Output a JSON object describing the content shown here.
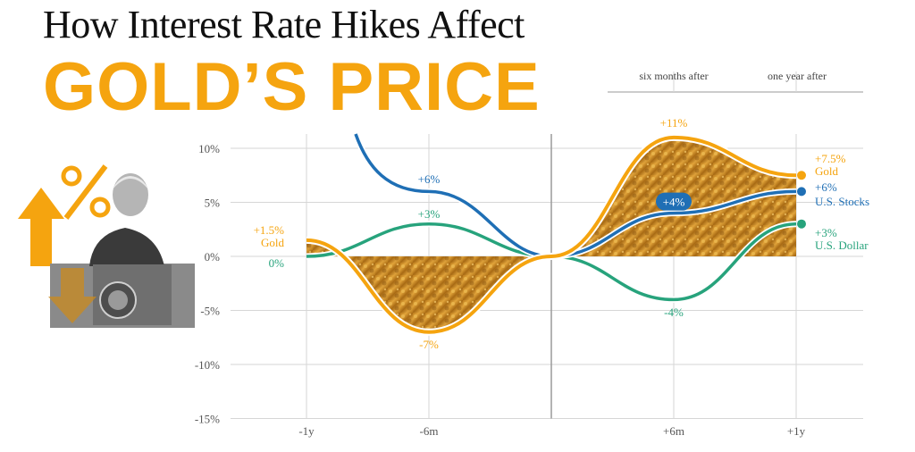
{
  "title": "How Interest Rate Hikes Affect",
  "headline": "GOLD’S PRICE",
  "colors": {
    "gold": "#f5a40f",
    "stocks": "#1f6fb5",
    "dollar": "#27a37c",
    "grid": "#d6d6d6",
    "axis": "#9a9a9a"
  },
  "icons": [
    "percent-up-arrow-icon",
    "down-arrow-icon",
    "speaker-photo"
  ],
  "chart_data": {
    "type": "line",
    "title": "",
    "ylim": [
      -15,
      11
    ],
    "y_ticks": [
      "10%",
      "5%",
      "0%",
      "-5%",
      "-10%",
      "-15%"
    ],
    "y_tick_values": [
      10,
      5,
      0,
      -5,
      -10,
      -15
    ],
    "x_ticks": [
      "-1y",
      "-6m",
      "+6m",
      "+1y"
    ],
    "x_tick_values": [
      -12,
      -6,
      6,
      12
    ],
    "period_labels": [
      "six months after",
      "one year after"
    ],
    "series": [
      {
        "name": "Gold",
        "x": [
          -12,
          -6,
          0,
          6,
          12
        ],
        "y": [
          1.5,
          -7,
          0,
          11,
          7.5
        ]
      },
      {
        "name": "U.S. Stocks",
        "x": [
          -12,
          -6,
          0,
          6,
          12
        ],
        "y": [
          13,
          6,
          0,
          4,
          6
        ]
      },
      {
        "name": "U.S. Dollar",
        "x": [
          -12,
          -6,
          0,
          6,
          12
        ],
        "y": [
          0,
          3,
          0,
          -4,
          3
        ]
      }
    ],
    "annotations": {
      "gold_start": "+1.5%",
      "gold_start_name": "Gold",
      "dollar_start": "0%",
      "stocks_6m_before": "+6%",
      "dollar_6m_before": "+3%",
      "gold_6m_before": "-7%",
      "gold_6m_after": "+11%",
      "stocks_6m_after": "+4%",
      "dollar_6m_after": "-4%",
      "gold_end": "+7.5%",
      "gold_end_name": "Gold",
      "stocks_end": "+6%",
      "stocks_end_name": "U.S. Stocks",
      "dollar_end": "+3%",
      "dollar_end_name": "U.S. Dollar"
    }
  }
}
